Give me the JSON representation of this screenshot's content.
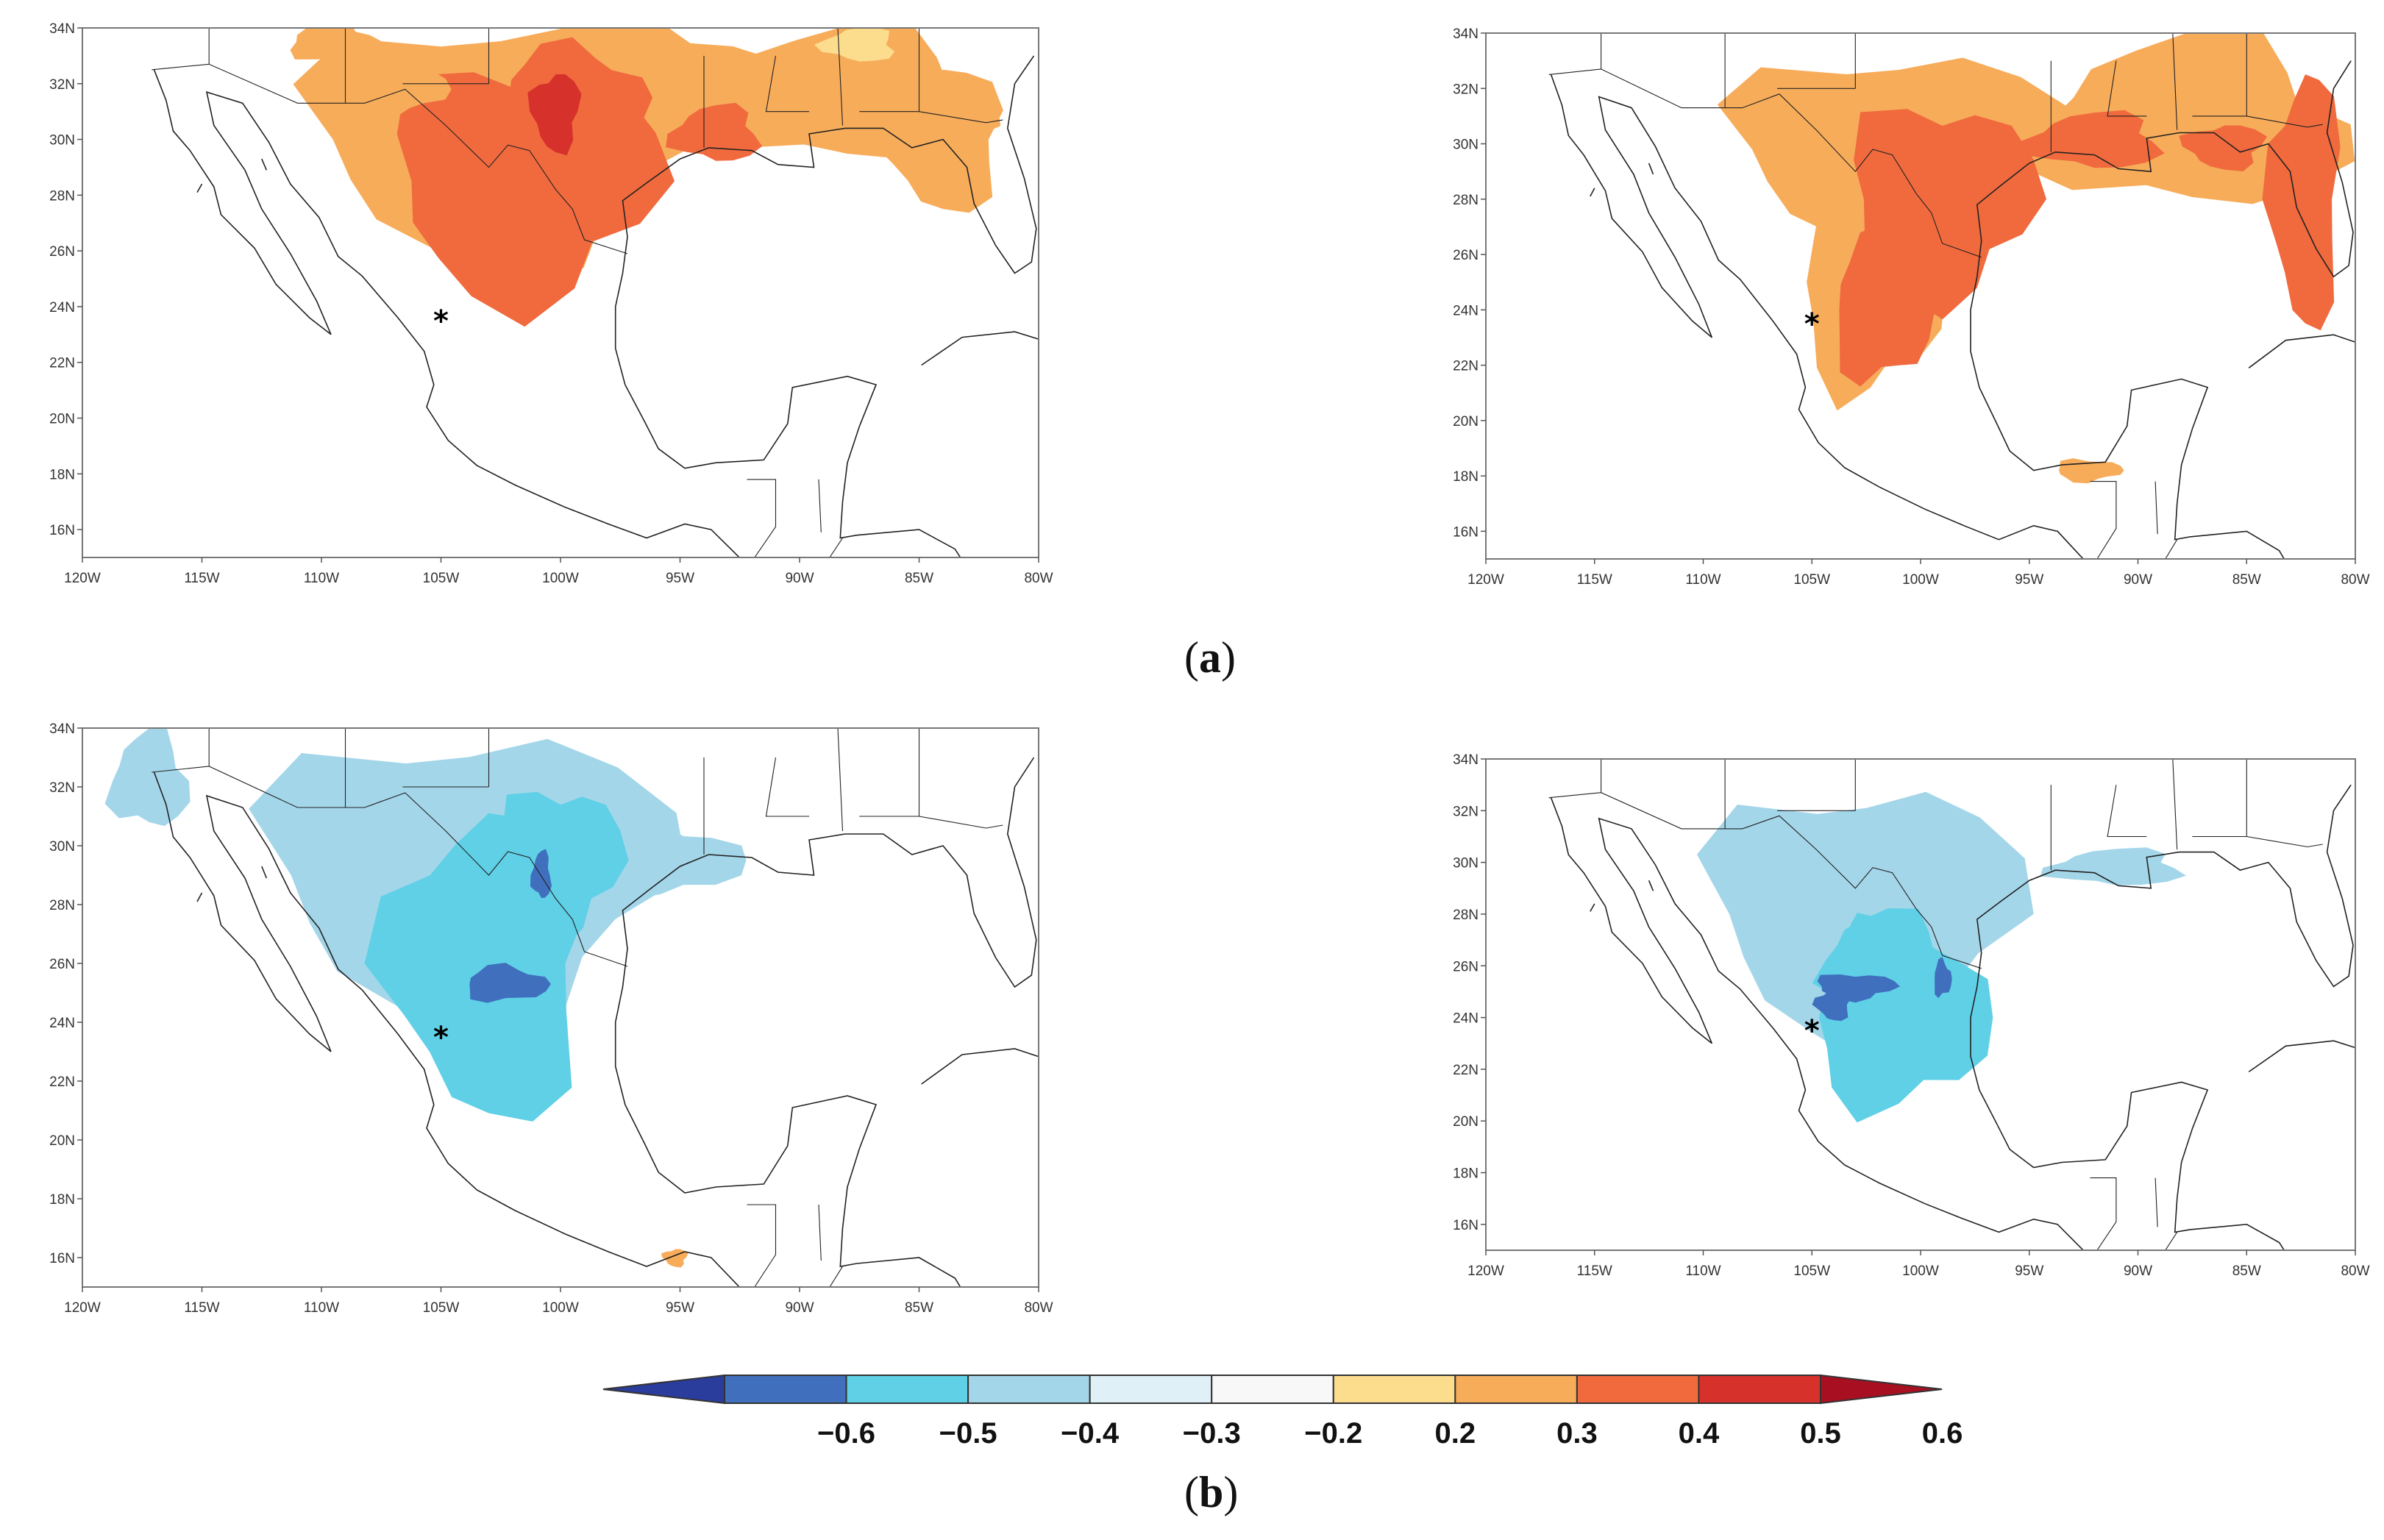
{
  "figure": {
    "row_labels": [
      "a",
      "b"
    ]
  },
  "maps": [
    {
      "id": "a-left",
      "lat_ticks": [
        "34N",
        "32N",
        "30N",
        "28N",
        "26N",
        "24N",
        "22N",
        "20N",
        "18N",
        "16N"
      ],
      "lon_ticks": [
        "120W",
        "115W",
        "110W",
        "105W",
        "100W",
        "95W",
        "90W",
        "85W",
        "80W"
      ],
      "marker": "*",
      "field_sign": "positive"
    },
    {
      "id": "a-right",
      "lat_ticks": [
        "34N",
        "32N",
        "30N",
        "28N",
        "26N",
        "24N",
        "22N",
        "20N",
        "18N",
        "16N"
      ],
      "lon_ticks": [
        "120W",
        "115W",
        "110W",
        "105W",
        "100W",
        "95W",
        "90W",
        "85W",
        "80W"
      ],
      "marker": "*",
      "field_sign": "positive"
    },
    {
      "id": "b-left",
      "lat_ticks": [
        "34N",
        "32N",
        "30N",
        "28N",
        "26N",
        "24N",
        "22N",
        "20N",
        "18N",
        "16N"
      ],
      "lon_ticks": [
        "120W",
        "115W",
        "110W",
        "105W",
        "100W",
        "95W",
        "90W",
        "85W",
        "80W"
      ],
      "marker": "*",
      "field_sign": "negative"
    },
    {
      "id": "b-right",
      "lat_ticks": [
        "34N",
        "32N",
        "30N",
        "28N",
        "26N",
        "24N",
        "22N",
        "20N",
        "18N",
        "16N"
      ],
      "lon_ticks": [
        "120W",
        "115W",
        "110W",
        "105W",
        "100W",
        "95W",
        "90W",
        "85W",
        "80W"
      ],
      "marker": "*",
      "field_sign": "negative"
    }
  ],
  "colorbar": {
    "tick_labels": [
      "−0.6",
      "−0.5",
      "−0.4",
      "−0.3",
      "−0.2",
      "0.2",
      "0.3",
      "0.4",
      "0.5",
      "0.6"
    ],
    "colors": [
      "#2a3c9c",
      "#3f6fbd",
      "#5fd0e6",
      "#a4d6ea",
      "#dff1f7",
      "#f8f8f8",
      "#fcdd8e",
      "#f7ac5a",
      "#f06a3e",
      "#d7312b",
      "#a81021"
    ]
  }
}
